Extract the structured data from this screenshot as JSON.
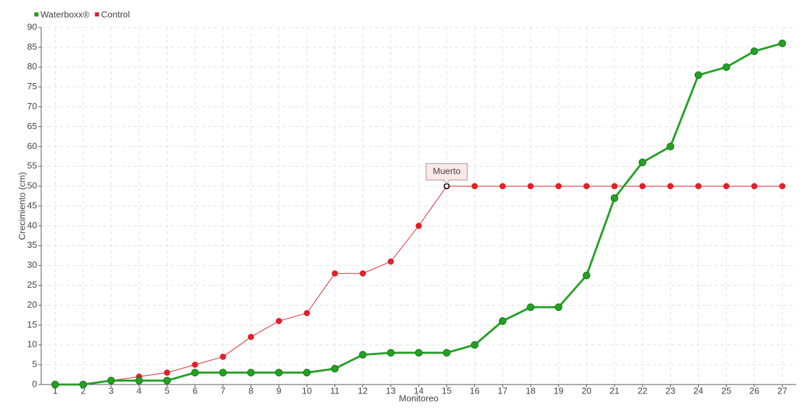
{
  "chart_data": {
    "type": "line",
    "x_label": "Monitoreo",
    "y_label": "Crecimiento (cm)",
    "categories": [
      "1",
      "2",
      "3",
      "4",
      "5",
      "6",
      "7",
      "8",
      "9",
      "10",
      "11",
      "12",
      "13",
      "14",
      "15",
      "16",
      "17",
      "18",
      "19",
      "20",
      "21",
      "22",
      "23",
      "24",
      "25",
      "26",
      "27"
    ],
    "series": [
      {
        "name": "Waterboxx®",
        "color": "#24a024",
        "values": [
          0,
          0,
          1,
          1,
          1,
          3,
          3,
          3,
          3,
          3,
          4,
          7.5,
          8,
          8,
          8,
          10,
          16,
          19.5,
          19.5,
          27.5,
          47,
          56,
          60,
          78,
          80,
          84,
          86
        ]
      },
      {
        "name": "Control",
        "color": "#e0202a",
        "values": [
          0,
          0,
          1,
          2,
          3,
          5,
          7,
          12,
          16,
          18,
          28,
          28,
          31,
          40,
          50,
          50,
          50,
          50,
          50,
          50,
          50,
          50,
          50,
          50,
          50,
          50,
          50
        ]
      }
    ],
    "annotations": [
      {
        "text": "Muerto",
        "series": "Control",
        "category": "15"
      }
    ],
    "ylim": [
      0,
      90
    ],
    "yticks": [
      0,
      5,
      10,
      15,
      20,
      25,
      30,
      35,
      40,
      45,
      50,
      55,
      60,
      65,
      70,
      75,
      80,
      85,
      90
    ],
    "grid": true,
    "legend": "top-left"
  }
}
